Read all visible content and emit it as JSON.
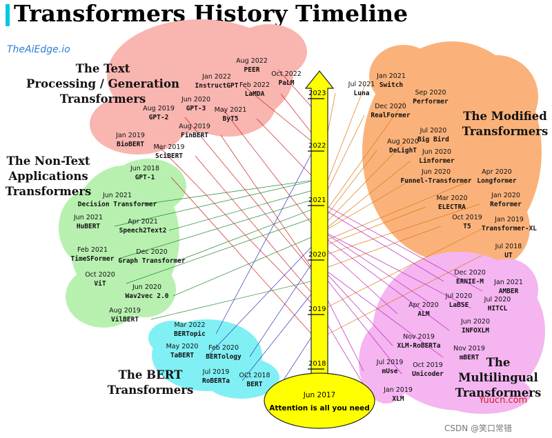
{
  "title": "Transformers History Timeline",
  "brand": "TheAiEdge.io",
  "colors": {
    "accent_bar": "#00c8e0",
    "arrow": "#ffff00",
    "origin": "#ffff00",
    "brand": "#2a7fd4"
  },
  "timeline": {
    "years": [
      "2023",
      "2022",
      "2021",
      "2020",
      "2019",
      "2018"
    ],
    "origin": {
      "date": "Jun 2017",
      "name": "Attention is all you need"
    }
  },
  "groups": [
    {
      "id": "text",
      "title_lines": [
        "The Text",
        "Processing / Generation",
        "Transformers"
      ],
      "color": "#f9b5b0",
      "line_color": "#cc2222",
      "items": [
        {
          "date": "Aug 2022",
          "name": "PEER"
        },
        {
          "date": "Oct 2022",
          "name": "PaLM"
        },
        {
          "date": "Jan 2022",
          "name": "InstructGPT"
        },
        {
          "date": "Feb 2022",
          "name": "LaMDA"
        },
        {
          "date": "Jun 2020",
          "name": "GPT-3"
        },
        {
          "date": "May 2021",
          "name": "ByT5"
        },
        {
          "date": "Aug 2019",
          "name": "GPT-2"
        },
        {
          "date": "Aug 2019",
          "name": "FinBERT"
        },
        {
          "date": "Jan 2019",
          "name": "BioBERT"
        },
        {
          "date": "Mar 2019",
          "name": "SciBERT"
        },
        {
          "date": "Jun 2018",
          "name": "GPT-1"
        }
      ]
    },
    {
      "id": "nontext",
      "title_lines": [
        "The Non-Text",
        "Applications",
        "Transformers"
      ],
      "color": "#b8f0b0",
      "line_color": "#228833",
      "items": [
        {
          "date": "Jun 2021",
          "name": "Decision Transformer"
        },
        {
          "date": "Jun 2021",
          "name": "HuBERT"
        },
        {
          "date": "Apr 2021",
          "name": "Speech2Text2"
        },
        {
          "date": "Feb 2021",
          "name": "TimeSFormer"
        },
        {
          "date": "Dec 2020",
          "name": "Graph Transformer"
        },
        {
          "date": "Oct 2020",
          "name": "ViT"
        },
        {
          "date": "Jun 2020",
          "name": "Wav2vec 2.0"
        },
        {
          "date": "Aug 2019",
          "name": "VilBERT"
        }
      ]
    },
    {
      "id": "bert",
      "title_lines": [
        "The BERT",
        "Transformers"
      ],
      "color": "#80f0f5",
      "line_color": "#3333bb",
      "items": [
        {
          "date": "Mar 2022",
          "name": "BERTopic"
        },
        {
          "date": "May 2020",
          "name": "TaBERT"
        },
        {
          "date": "Feb 2020",
          "name": "BERTology"
        },
        {
          "date": "Jul 2019",
          "name": "RoBERTa"
        },
        {
          "date": "OCt 2018",
          "name": "BERT"
        }
      ]
    },
    {
      "id": "modified",
      "title_lines": [
        "The Modified",
        "Transformers"
      ],
      "color": "#fbb27a",
      "line_color": "#dd7711",
      "items": [
        {
          "date": "Jan 2021",
          "name": "Switch"
        },
        {
          "date": "Jul 2021",
          "name": "Luna"
        },
        {
          "date": "Sep 2020",
          "name": "Performer"
        },
        {
          "date": "Dec 2020",
          "name": "RealFormer"
        },
        {
          "date": "Jul 2020",
          "name": "Big Bird"
        },
        {
          "date": "Aug 2020",
          "name": "DeLighT"
        },
        {
          "date": "Jun 2020",
          "name": "Linformer"
        },
        {
          "date": "Jun 2020",
          "name": "Funnel-Transformer"
        },
        {
          "date": "Apr 2020",
          "name": "Longformer"
        },
        {
          "date": "Mar 2020",
          "name": "ELECTRA"
        },
        {
          "date": "Jan 2020",
          "name": "Reformer"
        },
        {
          "date": "Oct 2019",
          "name": "T5"
        },
        {
          "date": "Jan 2019",
          "name": "Transformer-XL"
        },
        {
          "date": "Jul 2018",
          "name": "UT"
        }
      ]
    },
    {
      "id": "multilingual",
      "title_lines": [
        "The",
        "Multilingual",
        "Transformers"
      ],
      "color": "#f4b5f0",
      "line_color": "#bb22bb",
      "items": [
        {
          "date": "Dec 2020",
          "name": "ERNIE-M"
        },
        {
          "date": "Jan 2021",
          "name": "AMBER"
        },
        {
          "date": "Jul 2020",
          "name": "LaBSE"
        },
        {
          "date": "Jul 2020",
          "name": "HITCL"
        },
        {
          "date": "Apr 2020",
          "name": "ALM"
        },
        {
          "date": "Jun 2020",
          "name": "INFOXLM"
        },
        {
          "date": "Nov 2019",
          "name": "XLM-RoBERTa"
        },
        {
          "date": "Nov 2019",
          "name": "mBERT"
        },
        {
          "date": "Jul 2019",
          "name": "mUse"
        },
        {
          "date": "Oct 2019",
          "name": "Unicoder"
        },
        {
          "date": "Jan 2019",
          "name": "XLM"
        }
      ]
    }
  ],
  "watermarks": {
    "site": "Yuucn.com",
    "credit": "CSDN @笑口常错"
  }
}
